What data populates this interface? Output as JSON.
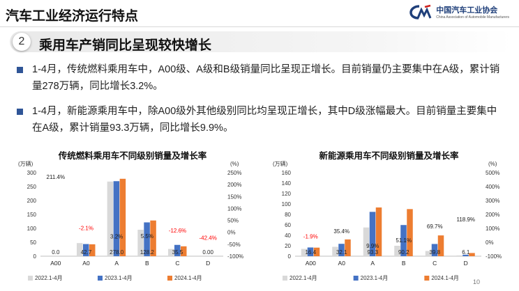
{
  "header": {
    "title": "汽车工业经济运行特点",
    "logo_cn": "中国汽车工业协会",
    "logo_en": "China Association of Automobile Manufacturers"
  },
  "section": {
    "number": "2",
    "title": "乘用车产销同比呈现较快增长"
  },
  "bullets": [
    "1-4月，传统燃料乘用车中，A00级、A级和B级销量同比呈现正增长。目前销量仍主要集中在A级，累计销量278万辆，同比增长3.2%。",
    "1-4月，新能源乘用车中，除A00级外其他级别同比均呈现正增长，其中D级涨幅最大。目前销量主要集中在A级，累计销量93.3万辆，同比增长9.9%。"
  ],
  "page_number": "10",
  "colors": {
    "s2022": "#d9d9d9",
    "s2023": "#4472c4",
    "s2024": "#ed7d31",
    "growth_pos": "#1a1a1a",
    "growth_neg": "#ff0000"
  },
  "chart_data": [
    {
      "type": "bar",
      "title": "传统燃料乘用车不同级别销量及增长率",
      "ylabel": "(万辆)",
      "y2label": "(%)",
      "categories": [
        "A00",
        "A0",
        "A",
        "B",
        "C",
        "D"
      ],
      "ylim": [
        0,
        300
      ],
      "yticks": [
        "0",
        "50",
        "100",
        "150",
        "200",
        "250",
        "300"
      ],
      "y2lim": [
        -100,
        250
      ],
      "y2ticks": [
        "-100%",
        "-50%",
        "0%",
        "50%",
        "100%",
        "150%",
        "200%",
        "250%"
      ],
      "series": [
        {
          "name": "2022.1-4月",
          "values": [
            0.0,
            47,
            268,
            95,
            26,
            0.02
          ]
        },
        {
          "name": "2023.1-4月",
          "values": [
            0.0,
            43.6,
            269.4,
            121.4,
            40.6,
            0.07
          ]
        },
        {
          "name": "2024.1-4月",
          "values": [
            0.0,
            42.7,
            278.0,
            128.2,
            35.5,
            0.0
          ]
        }
      ],
      "value_labels": [
        "0.0",
        "42.7",
        "278.0",
        "128.2",
        "35.5",
        "0.00"
      ],
      "growth": [
        211.4,
        -2.1,
        3.2,
        5.5,
        -12.6,
        -42.4
      ],
      "growth_labels": [
        "211.4%",
        "-2.1%",
        "3.2%",
        "5.5%",
        "-12.6%",
        "-42.4%"
      ],
      "legend_position": "bottom"
    },
    {
      "type": "bar",
      "title": "新能源乘用车不同级别销量及增长率",
      "ylabel": "(万辆)",
      "y2label": "(%)",
      "categories": [
        "A00",
        "A0",
        "A",
        "B",
        "C",
        "D"
      ],
      "ylim": [
        0,
        160
      ],
      "yticks": [
        "0",
        "20",
        "40",
        "60",
        "80",
        "100",
        "120",
        "140",
        "160"
      ],
      "y2lim": [
        -100,
        500
      ],
      "y2ticks": [
        "-100%",
        "0%",
        "100%",
        "200%",
        "300%",
        "400%",
        "500%"
      ],
      "series": [
        {
          "name": "2022.1-4月",
          "values": [
            14,
            18,
            55,
            20,
            10,
            1.5
          ]
        },
        {
          "name": "2023.1-4月",
          "values": [
            16.7,
            23.7,
            84.9,
            59.7,
            23.4,
            2.8
          ]
        },
        {
          "name": "2024.1-4月",
          "values": [
            16.4,
            32.1,
            93.3,
            90.2,
            39.8,
            6.1
          ]
        }
      ],
      "value_labels": [
        "16.4",
        "32.1",
        "93.3",
        "90.2",
        "39.8",
        "6.1"
      ],
      "growth": [
        -1.9,
        35.4,
        9.9,
        51.1,
        69.7,
        118.9
      ],
      "growth_labels": [
        "-1.9%",
        "35.4%",
        "9.9%",
        "51.1%",
        "69.7%",
        "118.9%"
      ],
      "legend_position": "bottom"
    }
  ]
}
